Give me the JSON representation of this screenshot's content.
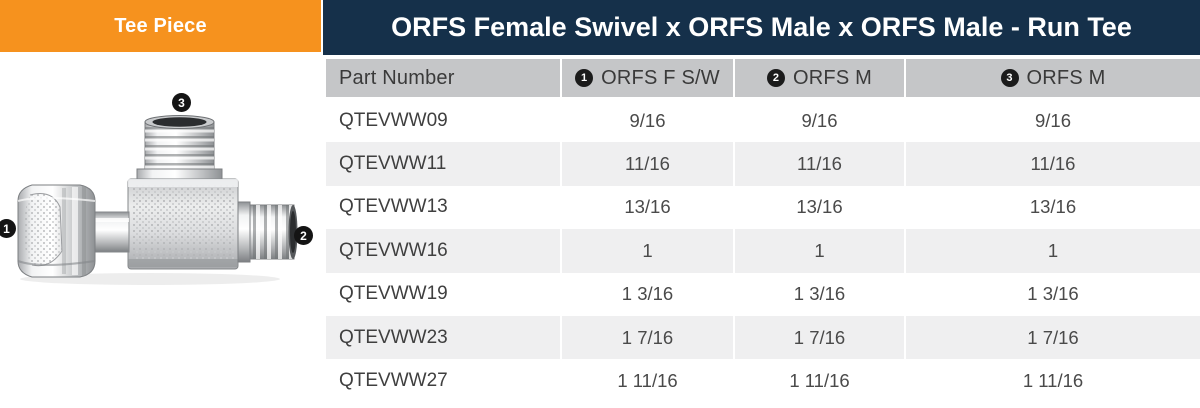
{
  "banner": {
    "label": "Tee Piece"
  },
  "header": {
    "title": "ORFS Female Swivel x ORFS Male x ORFS Male - Run Tee"
  },
  "diagram": {
    "callouts": [
      {
        "n": "1"
      },
      {
        "n": "2"
      },
      {
        "n": "3"
      }
    ]
  },
  "table": {
    "columns": [
      {
        "badge": "",
        "label": "Part Number"
      },
      {
        "badge": "1",
        "label": "ORFS F S/W"
      },
      {
        "badge": "2",
        "label": "ORFS M"
      },
      {
        "badge": "3",
        "label": "ORFS M"
      }
    ],
    "rows": [
      {
        "part": "QTEVWW09",
        "c1": "9/16",
        "c2": "9/16",
        "c3": "9/16"
      },
      {
        "part": "QTEVWW11",
        "c1": "11/16",
        "c2": "11/16",
        "c3": "11/16"
      },
      {
        "part": "QTEVWW13",
        "c1": "13/16",
        "c2": "13/16",
        "c3": "13/16"
      },
      {
        "part": "QTEVWW16",
        "c1": "1",
        "c2": "1",
        "c3": "1"
      },
      {
        "part": "QTEVWW19",
        "c1": "1 3/16",
        "c2": "1 3/16",
        "c3": "1 3/16"
      },
      {
        "part": "QTEVWW23",
        "c1": "1 7/16",
        "c2": "1 7/16",
        "c3": "1 7/16"
      },
      {
        "part": "QTEVWW27",
        "c1": "1 11/16",
        "c2": "1 11/16",
        "c3": "1 11/16"
      }
    ]
  },
  "colors": {
    "orange": "#F6921E",
    "navy": "#15304A",
    "header_gray": "#C5C6C8",
    "row_alt": "#EFEFF0",
    "text_dark": "#3A3A3A",
    "text_cell": "#4A4A4A"
  }
}
